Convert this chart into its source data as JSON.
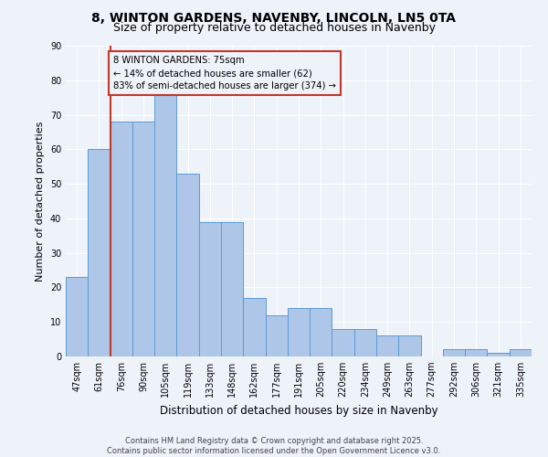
{
  "title1": "8, WINTON GARDENS, NAVENBY, LINCOLN, LN5 0TA",
  "title2": "Size of property relative to detached houses in Navenby",
  "xlabel": "Distribution of detached houses by size in Navenby",
  "ylabel": "Number of detached properties",
  "categories": [
    "47sqm",
    "61sqm",
    "76sqm",
    "90sqm",
    "105sqm",
    "119sqm",
    "133sqm",
    "148sqm",
    "162sqm",
    "177sqm",
    "191sqm",
    "205sqm",
    "220sqm",
    "234sqm",
    "249sqm",
    "263sqm",
    "277sqm",
    "292sqm",
    "306sqm",
    "321sqm",
    "335sqm"
  ],
  "values": [
    23,
    60,
    68,
    68,
    76,
    53,
    39,
    39,
    17,
    12,
    14,
    14,
    8,
    8,
    6,
    6,
    0,
    2,
    2,
    1,
    2
  ],
  "bar_color": "#aec6e8",
  "bar_edge_color": "#5b9bd5",
  "vline_color": "#c0392b",
  "annotation_text": "8 WINTON GARDENS: 75sqm\n← 14% of detached houses are smaller (62)\n83% of semi-detached houses are larger (374) →",
  "annotation_box_color": "#c0392b",
  "ylim": [
    0,
    90
  ],
  "yticks": [
    0,
    10,
    20,
    30,
    40,
    50,
    60,
    70,
    80,
    90
  ],
  "footer": "Contains HM Land Registry data © Crown copyright and database right 2025.\nContains public sector information licensed under the Open Government Licence v3.0.",
  "background_color": "#eef2f9",
  "grid_color": "#ffffff",
  "title_fontsize": 10,
  "subtitle_fontsize": 9,
  "tick_fontsize": 7,
  "ylabel_fontsize": 8,
  "xlabel_fontsize": 8.5,
  "footer_fontsize": 6
}
